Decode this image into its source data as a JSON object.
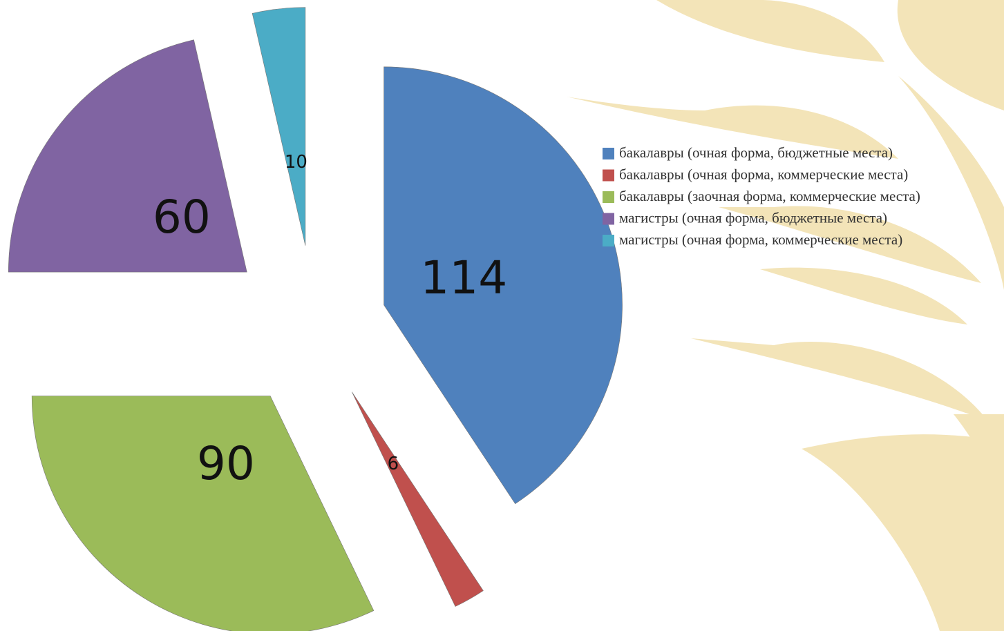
{
  "chart_data": {
    "type": "pie",
    "categories": [
      "бакалавры (очная форма, бюджетные места)",
      "бакалавры (очная форма, коммерческие места)",
      "бакалавры (заочная форма, коммерческие места)",
      "магистры (очная форма, бюджетные места)",
      "магистры (очная форма, коммерческие места)"
    ],
    "values": [
      114,
      6,
      90,
      60,
      10
    ],
    "colors": [
      "#4f81bd",
      "#c0504d",
      "#9bbb59",
      "#8064a2",
      "#4bacc6"
    ]
  }
}
